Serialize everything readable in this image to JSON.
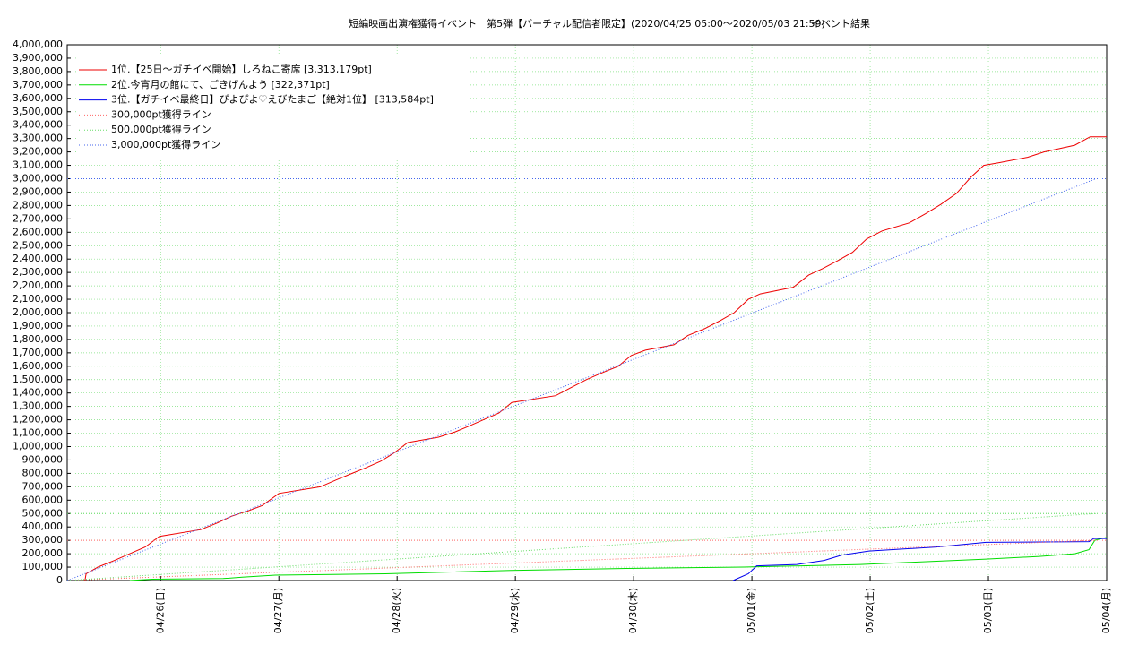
{
  "chart_data": {
    "type": "line",
    "title": "短編映画出演権獲得イベント　第5弾【バーチャル配信者限定】(2020/04/25 05:00〜2020/05/03 21:59)",
    "subtitle": "イベント結果",
    "xlim": [
      0.21,
      9.0
    ],
    "xticks": [
      {
        "value": 1,
        "label": "04/26(日)"
      },
      {
        "value": 2,
        "label": "04/27(月)"
      },
      {
        "value": 3,
        "label": "04/28(火)"
      },
      {
        "value": 4,
        "label": "04/29(水)"
      },
      {
        "value": 5,
        "label": "04/30(木)"
      },
      {
        "value": 6,
        "label": "05/01(金)"
      },
      {
        "value": 7,
        "label": "05/02(土)"
      },
      {
        "value": 8,
        "label": "05/03(日)"
      },
      {
        "value": 9,
        "label": "05/04(月)"
      }
    ],
    "ylim": [
      0,
      4000000
    ],
    "yticks": [
      0,
      {
        "value": 100000,
        "label": "100,000"
      },
      {
        "value": 200000,
        "label": "200,000"
      },
      {
        "value": 300000,
        "label": "300,000"
      },
      {
        "value": 400000,
        "label": "400,000"
      },
      {
        "value": 500000,
        "label": "500,000"
      },
      {
        "value": 600000,
        "label": "600,000"
      },
      {
        "value": 700000,
        "label": "700,000"
      },
      {
        "value": 800000,
        "label": "800,000"
      },
      {
        "value": 900000,
        "label": "900,000"
      },
      {
        "value": 1000000,
        "label": "1,000,000"
      },
      {
        "value": 1100000,
        "label": "1,100,000"
      },
      {
        "value": 1200000,
        "label": "1,200,000"
      },
      {
        "value": 1300000,
        "label": "1,300,000"
      },
      {
        "value": 1400000,
        "label": "1,400,000"
      },
      {
        "value": 1500000,
        "label": "1,500,000"
      },
      {
        "value": 1600000,
        "label": "1,600,000"
      },
      {
        "value": 1700000,
        "label": "1,700,000"
      },
      {
        "value": 1800000,
        "label": "1,800,000"
      },
      {
        "value": 1900000,
        "label": "1,900,000"
      },
      {
        "value": 2000000,
        "label": "2,000,000"
      },
      {
        "value": 2100000,
        "label": "2,100,000"
      },
      {
        "value": 2200000,
        "label": "2,200,000"
      },
      {
        "value": 2300000,
        "label": "2,300,000"
      },
      {
        "value": 2400000,
        "label": "2,400,000"
      },
      {
        "value": 2500000,
        "label": "2,500,000"
      },
      {
        "value": 2600000,
        "label": "2,600,000"
      },
      {
        "value": 2700000,
        "label": "2,700,000"
      },
      {
        "value": 2800000,
        "label": "2,800,000"
      },
      {
        "value": 2900000,
        "label": "2,900,000"
      },
      {
        "value": 3000000,
        "label": "3,000,000"
      },
      {
        "value": 3100000,
        "label": "3,100,000"
      },
      {
        "value": 3200000,
        "label": "3,200,000"
      },
      {
        "value": 3300000,
        "label": "3,300,000"
      },
      {
        "value": 3400000,
        "label": "3,400,000"
      },
      {
        "value": 3500000,
        "label": "3,500,000"
      },
      {
        "value": 3600000,
        "label": "3,600,000"
      },
      {
        "value": 3700000,
        "label": "3,700,000"
      },
      {
        "value": 3800000,
        "label": "3,800,000"
      },
      {
        "value": 3900000,
        "label": "3,900,000"
      },
      {
        "value": 4000000,
        "label": "4,000,000"
      }
    ],
    "grid": true,
    "legend": "top-left",
    "series": [
      {
        "name": "1位.【25日〜ガチイベ開始】しろねこ寄席 [3,313,179pt]",
        "color": "#ee0000",
        "style": "solid",
        "x": [
          0.36,
          0.37,
          0.47,
          0.61,
          0.74,
          0.87,
          0.99,
          1.34,
          1.48,
          1.6,
          1.74,
          1.86,
          2.0,
          2.35,
          2.48,
          2.62,
          2.73,
          2.86,
          2.97,
          3.09,
          3.35,
          3.49,
          3.6,
          3.73,
          3.86,
          3.97,
          4.34,
          4.47,
          4.6,
          4.73,
          4.87,
          4.98,
          5.1,
          5.34,
          5.46,
          5.6,
          5.73,
          5.85,
          5.97,
          6.07,
          6.35,
          6.48,
          6.6,
          6.73,
          6.85,
          6.97,
          7.1,
          7.33,
          7.47,
          7.6,
          7.73,
          7.85,
          7.96,
          8.09,
          8.33,
          8.47,
          8.73,
          8.86,
          9.0
        ],
        "values": [
          0,
          50000,
          100000,
          150000,
          200000,
          250000,
          330000,
          380000,
          430000,
          480000,
          520000,
          560000,
          650000,
          700000,
          750000,
          800000,
          840000,
          890000,
          950000,
          1030000,
          1070000,
          1110000,
          1150000,
          1200000,
          1250000,
          1330000,
          1380000,
          1440000,
          1500000,
          1550000,
          1600000,
          1680000,
          1720000,
          1760000,
          1830000,
          1880000,
          1940000,
          2000000,
          2100000,
          2140000,
          2190000,
          2280000,
          2330000,
          2390000,
          2450000,
          2550000,
          2610000,
          2670000,
          2740000,
          2810000,
          2890000,
          3010000,
          3100000,
          3120000,
          3160000,
          3200000,
          3250000,
          3313179,
          3313179
        ]
      },
      {
        "name": "2位.今宵月の館にて、ごきげんよう [322,371pt]",
        "color": "#00dd00",
        "style": "solid",
        "x": [
          0.74,
          0.93,
          1.53,
          1.69,
          1.97,
          2.9,
          3.96,
          4.94,
          5.93,
          6.92,
          7.98,
          8.43,
          8.73,
          8.85,
          8.9,
          9.0
        ],
        "values": [
          0,
          10000,
          15000,
          25000,
          40000,
          50000,
          75000,
          90000,
          100000,
          120000,
          160000,
          180000,
          200000,
          230000,
          300000,
          322371
        ]
      },
      {
        "name": "3位.【ガチイベ最終日】ぴよぴよ♡えびたまご【絶対1位】 [313,584pt]",
        "color": "#0000ee",
        "style": "solid",
        "x": [
          5.84,
          5.97,
          6.04,
          6.38,
          6.61,
          6.76,
          6.99,
          7.56,
          7.98,
          8.85,
          8.89,
          9.0
        ],
        "values": [
          0,
          50000,
          110000,
          120000,
          150000,
          190000,
          220000,
          250000,
          285000,
          290000,
          313584,
          313584
        ]
      },
      {
        "name": "300,000pt獲得ライン",
        "color": "#ff6666",
        "style": "dotted",
        "x": [
          0.21,
          8.91
        ],
        "values": [
          0,
          300000
        ]
      },
      {
        "name": "500,000pt獲得ライン",
        "color": "#66dd66",
        "style": "dotted",
        "x": [
          0.21,
          8.91
        ],
        "values": [
          0,
          500000
        ]
      },
      {
        "name": "3,000,000pt獲得ライン",
        "color": "#4466ee",
        "style": "dotted",
        "x": [
          0.21,
          8.91
        ],
        "values": [
          0,
          3000000
        ]
      }
    ]
  }
}
